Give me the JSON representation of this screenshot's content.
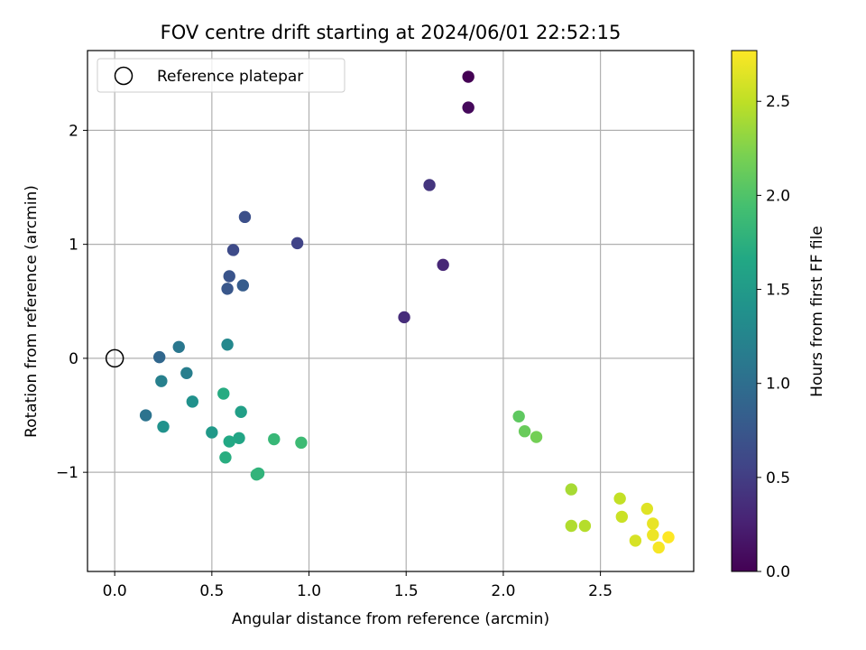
{
  "chart_data": {
    "type": "scatter",
    "title": "FOV centre drift starting at 2024/06/01 22:52:15",
    "xlabel": "Angular distance from reference (arcmin)",
    "ylabel": "Rotation from reference (arcmin)",
    "xlim": [
      -0.14,
      2.98
    ],
    "ylim": [
      -1.87,
      2.7
    ],
    "xticks": [
      0.0,
      0.5,
      1.0,
      1.5,
      2.0,
      2.5
    ],
    "xtick_labels": [
      "0.0",
      "0.5",
      "1.0",
      "1.5",
      "2.0",
      "2.5"
    ],
    "yticks": [
      -1,
      0,
      1,
      2
    ],
    "ytick_labels": [
      "−1",
      "0",
      "1",
      "2"
    ],
    "grid": true,
    "legend": {
      "placement": "top-left",
      "entries": [
        "Reference platepar"
      ]
    },
    "reference_point": {
      "x": 0.0,
      "y": 0.0
    },
    "colorbar": {
      "label": "Hours from first FF file",
      "range": [
        0.0,
        2.77
      ],
      "colormap": "viridis",
      "ticks": [
        0.0,
        0.5,
        1.0,
        1.5,
        2.0,
        2.5
      ],
      "tick_labels": [
        "0.0",
        "0.5",
        "1.0",
        "1.5",
        "2.0",
        "2.5"
      ]
    },
    "points": [
      {
        "x": 1.82,
        "y": 2.47,
        "hours": 0.0
      },
      {
        "x": 1.82,
        "y": 2.2,
        "hours": 0.06
      },
      {
        "x": 1.69,
        "y": 0.82,
        "hours": 0.3
      },
      {
        "x": 1.49,
        "y": 0.36,
        "hours": 0.35
      },
      {
        "x": 1.62,
        "y": 1.52,
        "hours": 0.42
      },
      {
        "x": 0.94,
        "y": 1.01,
        "hours": 0.55
      },
      {
        "x": 0.61,
        "y": 0.95,
        "hours": 0.63
      },
      {
        "x": 0.67,
        "y": 1.24,
        "hours": 0.68
      },
      {
        "x": 0.59,
        "y": 0.72,
        "hours": 0.72
      },
      {
        "x": 0.58,
        "y": 0.61,
        "hours": 0.75
      },
      {
        "x": 0.66,
        "y": 0.64,
        "hours": 0.8
      },
      {
        "x": 0.23,
        "y": 0.01,
        "hours": 0.92
      },
      {
        "x": 0.16,
        "y": -0.5,
        "hours": 1.05
      },
      {
        "x": 0.33,
        "y": 0.1,
        "hours": 1.1
      },
      {
        "x": 0.37,
        "y": -0.13,
        "hours": 1.18
      },
      {
        "x": 0.24,
        "y": -0.2,
        "hours": 1.2
      },
      {
        "x": 0.58,
        "y": 0.12,
        "hours": 1.28
      },
      {
        "x": 0.4,
        "y": -0.38,
        "hours": 1.38
      },
      {
        "x": 0.25,
        "y": -0.6,
        "hours": 1.4
      },
      {
        "x": 0.5,
        "y": -0.65,
        "hours": 1.48
      },
      {
        "x": 0.65,
        "y": -0.47,
        "hours": 1.55
      },
      {
        "x": 0.64,
        "y": -0.7,
        "hours": 1.62
      },
      {
        "x": 0.59,
        "y": -0.73,
        "hours": 1.66
      },
      {
        "x": 0.56,
        "y": -0.31,
        "hours": 1.7
      },
      {
        "x": 0.57,
        "y": -0.87,
        "hours": 1.72
      },
      {
        "x": 0.74,
        "y": -1.01,
        "hours": 1.78
      },
      {
        "x": 0.73,
        "y": -1.02,
        "hours": 1.8
      },
      {
        "x": 0.82,
        "y": -0.71,
        "hours": 1.84
      },
      {
        "x": 0.96,
        "y": -0.74,
        "hours": 1.88
      },
      {
        "x": 2.08,
        "y": -0.51,
        "hours": 2.08
      },
      {
        "x": 2.11,
        "y": -0.64,
        "hours": 2.13
      },
      {
        "x": 2.17,
        "y": -0.69,
        "hours": 2.18
      },
      {
        "x": 2.35,
        "y": -1.15,
        "hours": 2.4
      },
      {
        "x": 2.35,
        "y": -1.47,
        "hours": 2.44
      },
      {
        "x": 2.42,
        "y": -1.47,
        "hours": 2.46
      },
      {
        "x": 2.6,
        "y": -1.23,
        "hours": 2.52
      },
      {
        "x": 2.61,
        "y": -1.39,
        "hours": 2.55
      },
      {
        "x": 2.68,
        "y": -1.6,
        "hours": 2.6
      },
      {
        "x": 2.74,
        "y": -1.32,
        "hours": 2.64
      },
      {
        "x": 2.77,
        "y": -1.45,
        "hours": 2.68
      },
      {
        "x": 2.77,
        "y": -1.55,
        "hours": 2.7
      },
      {
        "x": 2.8,
        "y": -1.66,
        "hours": 2.74
      },
      {
        "x": 2.85,
        "y": -1.57,
        "hours": 2.77
      }
    ]
  }
}
